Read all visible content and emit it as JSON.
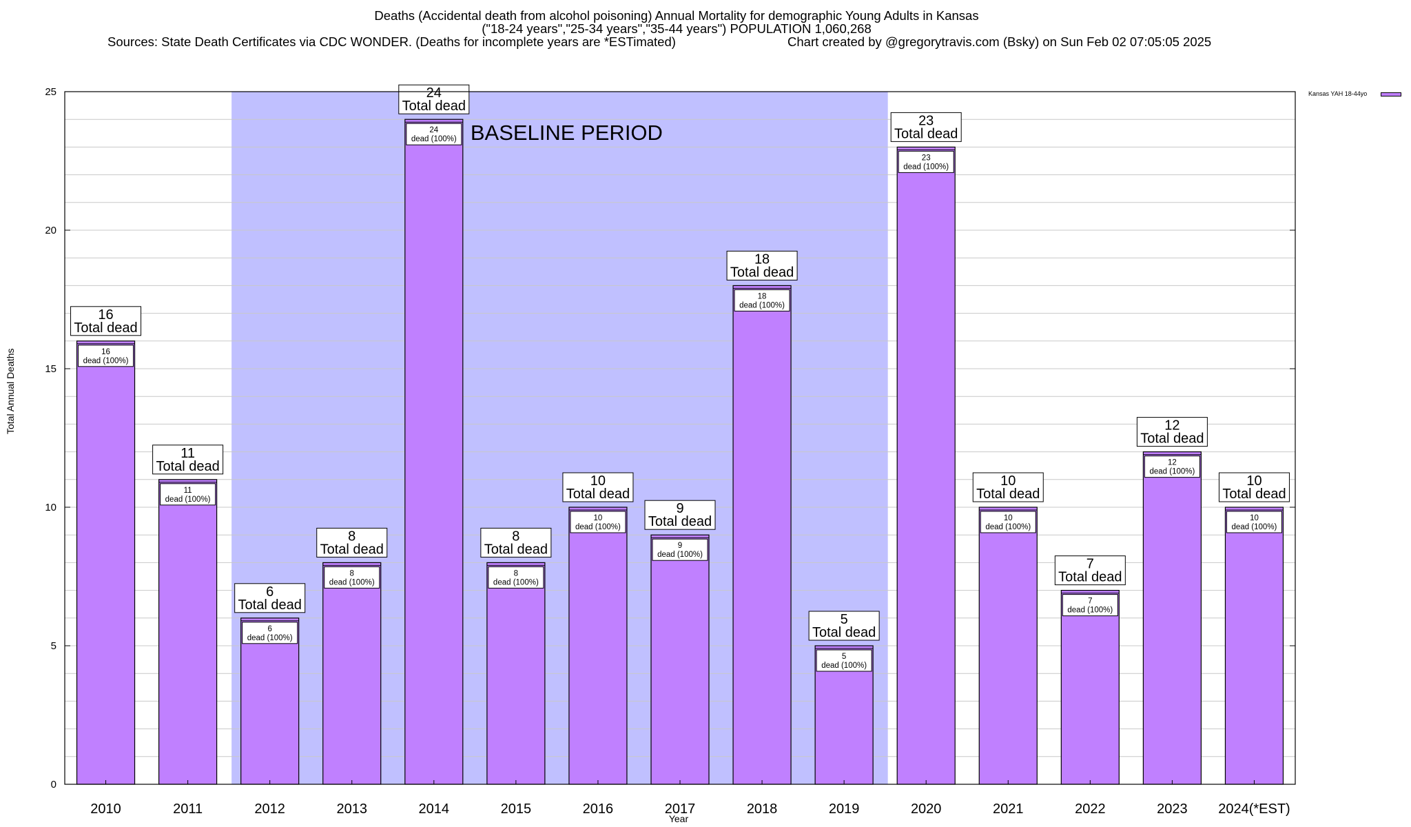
{
  "title": {
    "line1": "Deaths (Accidental death from alcohol poisoning) Annual Mortality for demographic Young Adults in Kansas",
    "line2": "(\"18-24 years\",\"25-34 years\",\"35-44 years\") POPULATION 1,060,268",
    "line3_left": "Sources: State Death Certificates via CDC WONDER. (Deaths for incomplete years are *ESTimated)",
    "line3_right": "Chart created by @gregorytravis.com (Bsky) on Sun Feb 02 07:05:05 2025"
  },
  "colors": {
    "bar": "#c080ff",
    "baseline_band": "#c0c0ff",
    "gridline": "#c8c8c8"
  },
  "chart_data": {
    "type": "bar",
    "title": "Deaths (Accidental death from alcohol poisoning) Annual Mortality for demographic Young Adults in Kansas",
    "xlabel": "Year",
    "ylabel": "Total Annual Deaths",
    "ylim": [
      0,
      25
    ],
    "y_ticks": [
      0,
      5,
      10,
      15,
      20,
      25
    ],
    "grid": true,
    "legend_position": "top-right",
    "categories": [
      "2010",
      "2011",
      "2012",
      "2013",
      "2014",
      "2015",
      "2016",
      "2017",
      "2018",
      "2019",
      "2020",
      "2021",
      "2022",
      "2023",
      "2024(*EST)"
    ],
    "series": [
      {
        "name": "Kansas YAH 18-44yo",
        "values": [
          16,
          11,
          6,
          8,
          24,
          8,
          10,
          9,
          18,
          5,
          23,
          10,
          7,
          12,
          10
        ]
      }
    ],
    "bar_label_top": [
      "16\nTotal dead",
      "11\nTotal dead",
      "6\nTotal dead",
      "8\nTotal dead",
      "24\nTotal dead",
      "8\nTotal dead",
      "10\nTotal dead",
      "9\nTotal dead",
      "18\nTotal dead",
      "5\nTotal dead",
      "23\nTotal dead",
      "10\nTotal dead",
      "7\nTotal dead",
      "12\nTotal dead",
      "10\nTotal dead"
    ],
    "bar_label_inner": [
      "16\ndead (100%)",
      "11\ndead (100%)",
      "6\ndead (100%)",
      "8\ndead (100%)",
      "24\ndead (100%)",
      "8\ndead (100%)",
      "10\ndead (100%)",
      "9\ndead (100%)",
      "18\ndead (100%)",
      "5\ndead (100%)",
      "23\ndead (100%)",
      "10\ndead (100%)",
      "7\ndead (100%)",
      "12\ndead (100%)",
      "10\ndead (100%)"
    ],
    "baseline_period": {
      "label": "BASELINE PERIOD",
      "from": "2012",
      "to": "2019"
    }
  }
}
